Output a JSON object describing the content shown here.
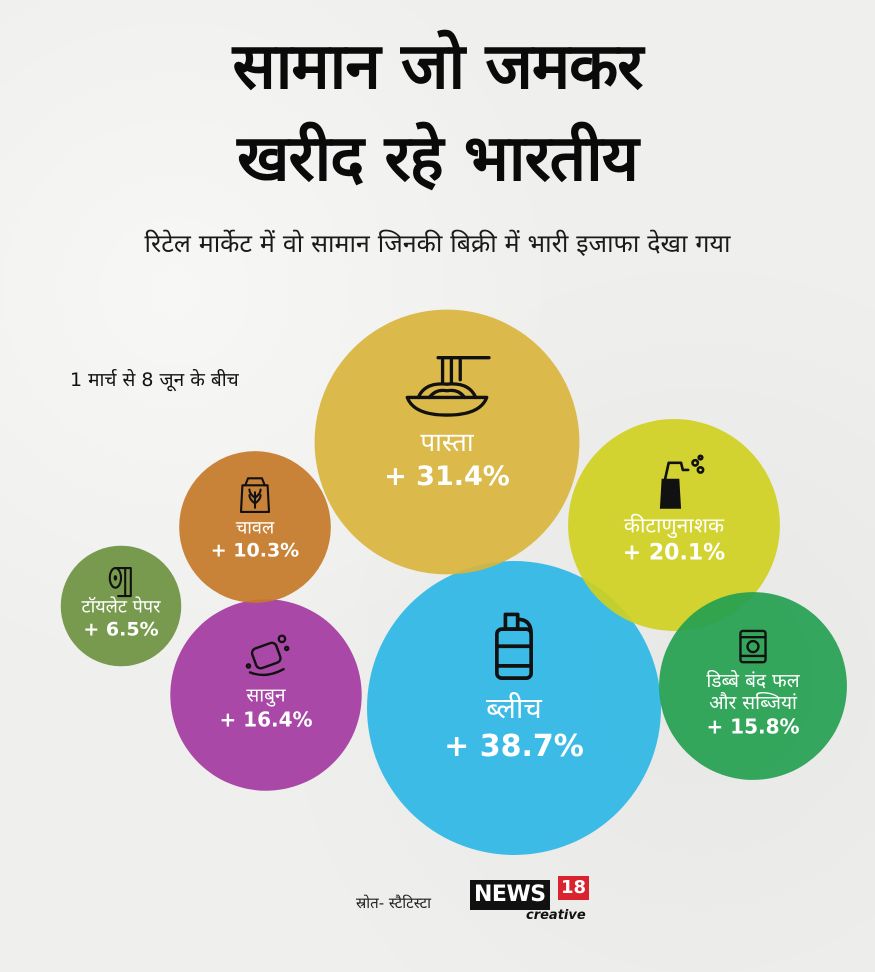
{
  "header": {
    "title_line1": "सामान जो जमकर",
    "title_line2": "खरीद रहे भारतीय",
    "subtitle": "रिटेल मार्केट में वो सामान जिनकी बिक्री में भारी इजाफा देखा गया",
    "period": "1 मार्च से 8 जून के बीच"
  },
  "chart_data": {
    "type": "bubble",
    "title": "सामान जो जमकर खरीद रहे भारतीय",
    "subtitle": "रिटेल मार्केट में वो सामान जिनकी बिक्री में भारी इजाफा देखा गया",
    "categories": [
      "ब्लीच",
      "पास्ता",
      "कीटाणुनाशक",
      "साबुन",
      "डिब्बे बंद फल और सब्जियां",
      "चावल",
      "टॉयलेट पेपर"
    ],
    "values": [
      38.7,
      31.4,
      20.1,
      16.4,
      15.8,
      10.3,
      6.5
    ],
    "value_labels": [
      "+ 38.7%",
      "+ 31.4%",
      "+ 20.1%",
      "+ 16.4%",
      "+ 15.8%",
      "+ 10.3%",
      "+ 6.5%"
    ],
    "colors": [
      "#2db6e5",
      "#d9b43c",
      "#cfd021",
      "#a33aa0",
      "#24a050",
      "#c57a28",
      "#6e9340"
    ],
    "icons": [
      "bleach-bottle-icon",
      "pasta-bowl-icon",
      "spray-bottle-icon",
      "soap-icon",
      "tin-can-icon",
      "rice-sack-icon",
      "toilet-roll-icon"
    ]
  },
  "footer": {
    "source": "स्रोत- स्टैटिस्टा",
    "logo_news": "NEWS",
    "logo_number": "18",
    "logo_creative": "creative"
  }
}
